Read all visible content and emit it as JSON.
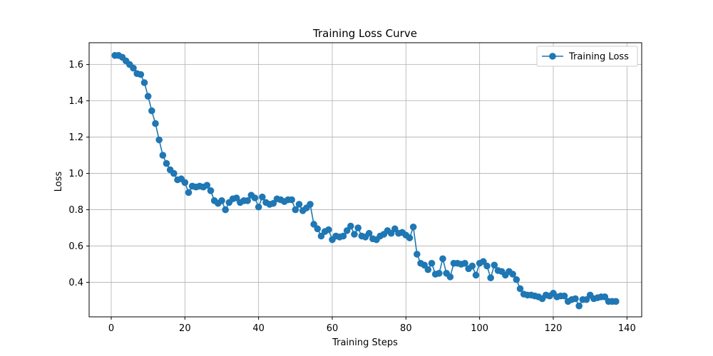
{
  "chart_data": {
    "type": "line",
    "title": "Training Loss Curve",
    "xlabel": "Training Steps",
    "ylabel": "Loss",
    "xlim": [
      -6,
      144
    ],
    "ylim": [
      0.21,
      1.72
    ],
    "xticks": [
      0,
      20,
      40,
      60,
      80,
      100,
      120,
      140
    ],
    "yticks": [
      0.4,
      0.6,
      0.8,
      1.0,
      1.2,
      1.4,
      1.6
    ],
    "ytick_labels": [
      "0.4",
      "0.6",
      "0.8",
      "1.0",
      "1.2",
      "1.4",
      "1.6"
    ],
    "grid": true,
    "legend_position": "top-right",
    "series": [
      {
        "name": "Training Loss",
        "color": "#1f77b4",
        "marker": "circle",
        "x": [
          1,
          2,
          3,
          4,
          5,
          6,
          7,
          8,
          9,
          10,
          11,
          12,
          13,
          14,
          15,
          16,
          17,
          18,
          19,
          20,
          21,
          22,
          23,
          24,
          25,
          26,
          27,
          28,
          29,
          30,
          31,
          32,
          33,
          34,
          35,
          36,
          37,
          38,
          39,
          40,
          41,
          42,
          43,
          44,
          45,
          46,
          47,
          48,
          49,
          50,
          51,
          52,
          53,
          54,
          55,
          56,
          57,
          58,
          59,
          60,
          61,
          62,
          63,
          64,
          65,
          66,
          67,
          68,
          69,
          70,
          71,
          72,
          73,
          74,
          75,
          76,
          77,
          78,
          79,
          80,
          81,
          82,
          83,
          84,
          85,
          86,
          87,
          88,
          89,
          90,
          91,
          92,
          93,
          94,
          95,
          96,
          97,
          98,
          99,
          100,
          101,
          102,
          103,
          104,
          105,
          106,
          107,
          108,
          109,
          110,
          111,
          112,
          113,
          114,
          115,
          116,
          117,
          118,
          119,
          120,
          121,
          122,
          123,
          124,
          125,
          126,
          127,
          128,
          129,
          130,
          131,
          132,
          133,
          134,
          135,
          136,
          137
        ],
        "y": [
          1.65,
          1.65,
          1.64,
          1.62,
          1.6,
          1.58,
          1.55,
          1.545,
          1.5,
          1.425,
          1.345,
          1.275,
          1.185,
          1.1,
          1.055,
          1.02,
          1.0,
          0.965,
          0.97,
          0.95,
          0.895,
          0.93,
          0.925,
          0.93,
          0.925,
          0.935,
          0.905,
          0.85,
          0.835,
          0.85,
          0.8,
          0.84,
          0.86,
          0.865,
          0.84,
          0.85,
          0.85,
          0.88,
          0.865,
          0.815,
          0.87,
          0.84,
          0.83,
          0.835,
          0.86,
          0.855,
          0.845,
          0.855,
          0.855,
          0.8,
          0.83,
          0.795,
          0.81,
          0.83,
          0.72,
          0.695,
          0.655,
          0.68,
          0.69,
          0.635,
          0.655,
          0.65,
          0.655,
          0.685,
          0.71,
          0.665,
          0.7,
          0.655,
          0.65,
          0.67,
          0.64,
          0.635,
          0.655,
          0.665,
          0.685,
          0.67,
          0.695,
          0.67,
          0.675,
          0.66,
          0.645,
          0.705,
          0.555,
          0.505,
          0.495,
          0.47,
          0.505,
          0.445,
          0.45,
          0.53,
          0.45,
          0.43,
          0.505,
          0.505,
          0.5,
          0.505,
          0.475,
          0.49,
          0.44,
          0.505,
          0.515,
          0.49,
          0.425,
          0.495,
          0.465,
          0.46,
          0.44,
          0.46,
          0.445,
          0.415,
          0.365,
          0.335,
          0.33,
          0.33,
          0.325,
          0.32,
          0.31,
          0.33,
          0.325,
          0.34,
          0.32,
          0.325,
          0.325,
          0.295,
          0.305,
          0.31,
          0.27,
          0.305,
          0.305,
          0.33,
          0.31,
          0.315,
          0.32,
          0.32,
          0.295,
          0.295,
          0.295
        ]
      }
    ]
  }
}
